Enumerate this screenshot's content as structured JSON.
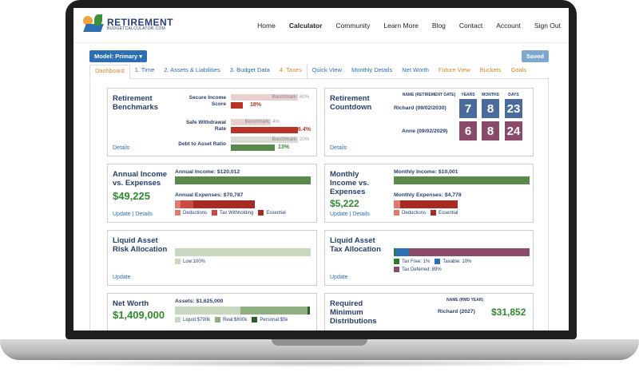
{
  "nav": {
    "logo_main": "RETIREMENT",
    "logo_sub": "BUDGETCALCULATOR.COM",
    "items": [
      "Home",
      "Calculator",
      "Community",
      "Learn More",
      "Blog",
      "Contact",
      "Account",
      "Sign Out"
    ]
  },
  "toolbar": {
    "model_label": "Model: Primary",
    "saved_label": "Saved"
  },
  "tabs": [
    "Dashboard",
    "1. Time",
    "2. Assets & Liabilities",
    "3. Budget Data",
    "4. Taxes",
    "Quick View",
    "Monthly Details",
    "Net Worth",
    "Future View",
    "Buckets",
    "Goals"
  ],
  "benchmarks": {
    "title_1": "Retirement",
    "title_2": "Benchmarks",
    "details": "Details",
    "rows": [
      {
        "label_1": "Secure Income",
        "label_2": "Score",
        "benchmark": "Benchmark",
        "benchmark_value": "80%",
        "value": "18%",
        "fraction": 0.18,
        "color": "#b83228"
      },
      {
        "label_1": "Safe Withdrawal",
        "label_2": "Rate",
        "benchmark": "Benchmark",
        "benchmark_value": "4%",
        "value": "6.4%",
        "fraction": 1.0,
        "color": "#b83228"
      },
      {
        "label_1": "Debt to Asset Ratio",
        "label_2": "",
        "benchmark": "Benchmark",
        "benchmark_value": "20%",
        "value": "13%",
        "fraction": 0.65,
        "color": "#5a8a4a"
      }
    ]
  },
  "countdown": {
    "title_1": "Retirement",
    "title_2": "Countdown",
    "details": "Details",
    "header_name": "NAME (RETIREMENT DATE)",
    "header_years": "YEARS",
    "header_months": "MONTHS",
    "header_days": "DAYS",
    "people": [
      {
        "name": "Richard (09/02/2030)",
        "years": "7",
        "months": "8",
        "days": "23",
        "color": "#4a6b9c"
      },
      {
        "name": "Anne (09/02/2029)",
        "years": "6",
        "months": "8",
        "days": "24",
        "color": "#8a4a6a"
      }
    ]
  },
  "annual": {
    "title_1": "Annual Income",
    "title_2": "vs. Expenses",
    "big": "$49,225",
    "income_label": "Annual Income: $120,012",
    "expenses_label": "Annual Expenses: $70,787",
    "update": "Update",
    "sep": "|",
    "details": "Details",
    "legend": [
      "Deductions",
      "Tax Withholding",
      "Essential"
    ]
  },
  "monthly": {
    "title_1": "Monthly",
    "title_2": "Income vs.",
    "title_3": "Expenses",
    "big": "$5,222",
    "income_label": "Monthly Income: $10,001",
    "expenses_label": "Monthly Expenses: $4,778",
    "update": "Update",
    "sep": "|",
    "details": "Details",
    "legend": [
      "Deductions",
      "Essential"
    ]
  },
  "risk": {
    "title_1": "Liquid Asset",
    "title_2": "Risk Allocation",
    "legend": [
      "Low:100%"
    ],
    "update": "Update"
  },
  "tax": {
    "title_1": "Liquid Asset",
    "title_2": "Tax Allocation",
    "legend": [
      "Tax Free: 1%",
      "Taxable: 10%",
      "Tax Deferred: 89%"
    ],
    "update": "Update"
  },
  "networth": {
    "title": "Net Worth",
    "big": "$1,409,000",
    "assets_label": "Assets: $1,625,000",
    "legend": [
      "Liquid:$790k",
      "Real:$800k",
      "Personal:$5k"
    ]
  },
  "rmd": {
    "title_1": "Required",
    "title_2": "Minimum",
    "title_3": "Distributions",
    "header": "NAME (RMD YEAR)",
    "name": "Richard (2027)",
    "value": "$31,852"
  }
}
